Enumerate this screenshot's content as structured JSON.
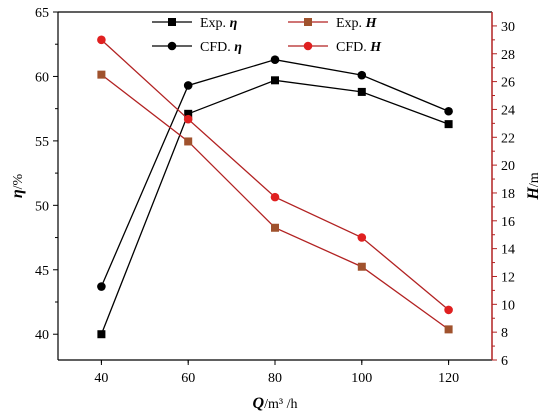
{
  "chart_data": {
    "type": "line",
    "title": "",
    "x": [
      40,
      60,
      80,
      100,
      120
    ],
    "xlim": [
      30,
      130
    ],
    "x_ticks": [
      40,
      60,
      80,
      100,
      120
    ],
    "xlabel": {
      "var": "Q",
      "unit": "/m³ /h"
    },
    "y_left": {
      "var": "η",
      "unit": "/%",
      "ylim": [
        38,
        65
      ],
      "ticks": [
        40,
        45,
        50,
        55,
        60,
        65
      ]
    },
    "y_right": {
      "var": "H",
      "unit": "/m",
      "ylim": [
        6,
        31
      ],
      "ticks": [
        6,
        8,
        10,
        12,
        14,
        16,
        18,
        20,
        22,
        24,
        26,
        28,
        30
      ]
    },
    "series": [
      {
        "name": "Exp. η",
        "label_text": "Exp.",
        "label_var": "η",
        "axis": "left",
        "marker": "square",
        "color": "#000000",
        "values": [
          40.0,
          57.1,
          59.7,
          58.8,
          56.3
        ]
      },
      {
        "name": "CFD. η",
        "label_text": "CFD.",
        "label_var": "η",
        "axis": "left",
        "marker": "circle",
        "color": "#000000",
        "values": [
          43.7,
          59.3,
          61.3,
          60.1,
          57.3
        ]
      },
      {
        "name": "Exp. H",
        "label_text": "Exp.",
        "label_var": "H",
        "axis": "right",
        "marker": "square",
        "color": "#b22222",
        "values": [
          26.5,
          21.7,
          15.5,
          12.7,
          8.2
        ]
      },
      {
        "name": "CFD. H",
        "label_text": "CFD.",
        "label_var": "H",
        "axis": "right",
        "marker": "circle",
        "color": "#b22222",
        "values": [
          29.0,
          23.3,
          17.7,
          14.8,
          9.6
        ]
      }
    ],
    "legend_position": "top-center",
    "grid": false,
    "colors": {
      "right_axis": "#b22222",
      "right_marker_fill_square": "#a0522d",
      "right_marker_fill_circle": "#e02020"
    }
  }
}
